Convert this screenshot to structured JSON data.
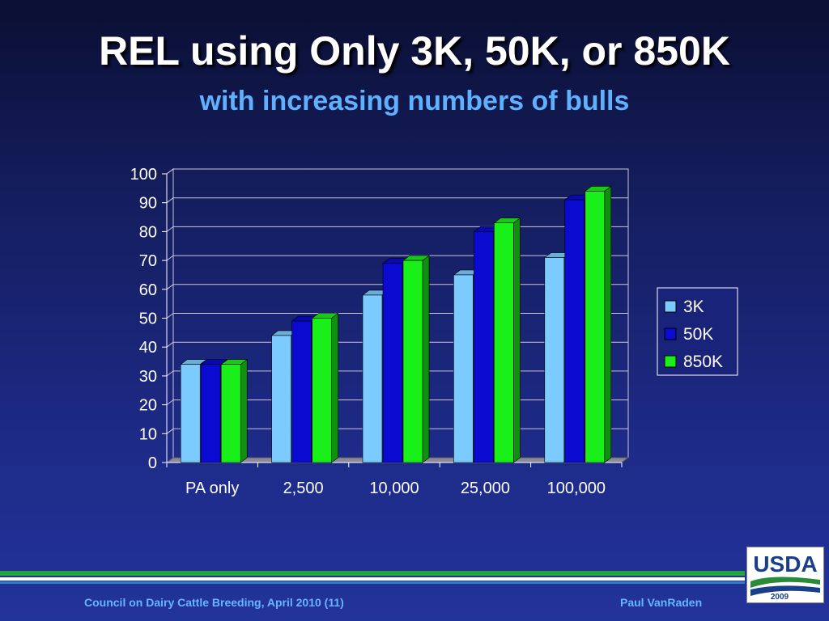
{
  "title": "REL using Only 3K, 50K, or 850K",
  "subtitle": "with increasing numbers of bulls",
  "footer": {
    "left": "Council on Dairy Cattle Breeding, April 2010 (11)",
    "right": "Paul VanRaden"
  },
  "logo": {
    "text": "USDA",
    "year": "2009"
  },
  "colors": {
    "series_3k": "#7ccbff",
    "series_50k": "#0a0ad0",
    "series_850k": "#19f019",
    "grid": "#c8c8d8",
    "text": "#ffffff"
  },
  "chart_data": {
    "type": "bar",
    "categories": [
      "PA only",
      "2,500",
      "10,000",
      "25,000",
      "100,000"
    ],
    "series": [
      {
        "name": "3K",
        "values": [
          34,
          44,
          58,
          65,
          71
        ]
      },
      {
        "name": "50K",
        "values": [
          34,
          49,
          69,
          80,
          91
        ]
      },
      {
        "name": "850K",
        "values": [
          34,
          50,
          70,
          83,
          94
        ]
      }
    ],
    "ylim": [
      0,
      100
    ],
    "yticks": [
      0,
      10,
      20,
      30,
      40,
      50,
      60,
      70,
      80,
      90,
      100
    ],
    "grid": true,
    "legend_position": "right",
    "three_d": true
  }
}
